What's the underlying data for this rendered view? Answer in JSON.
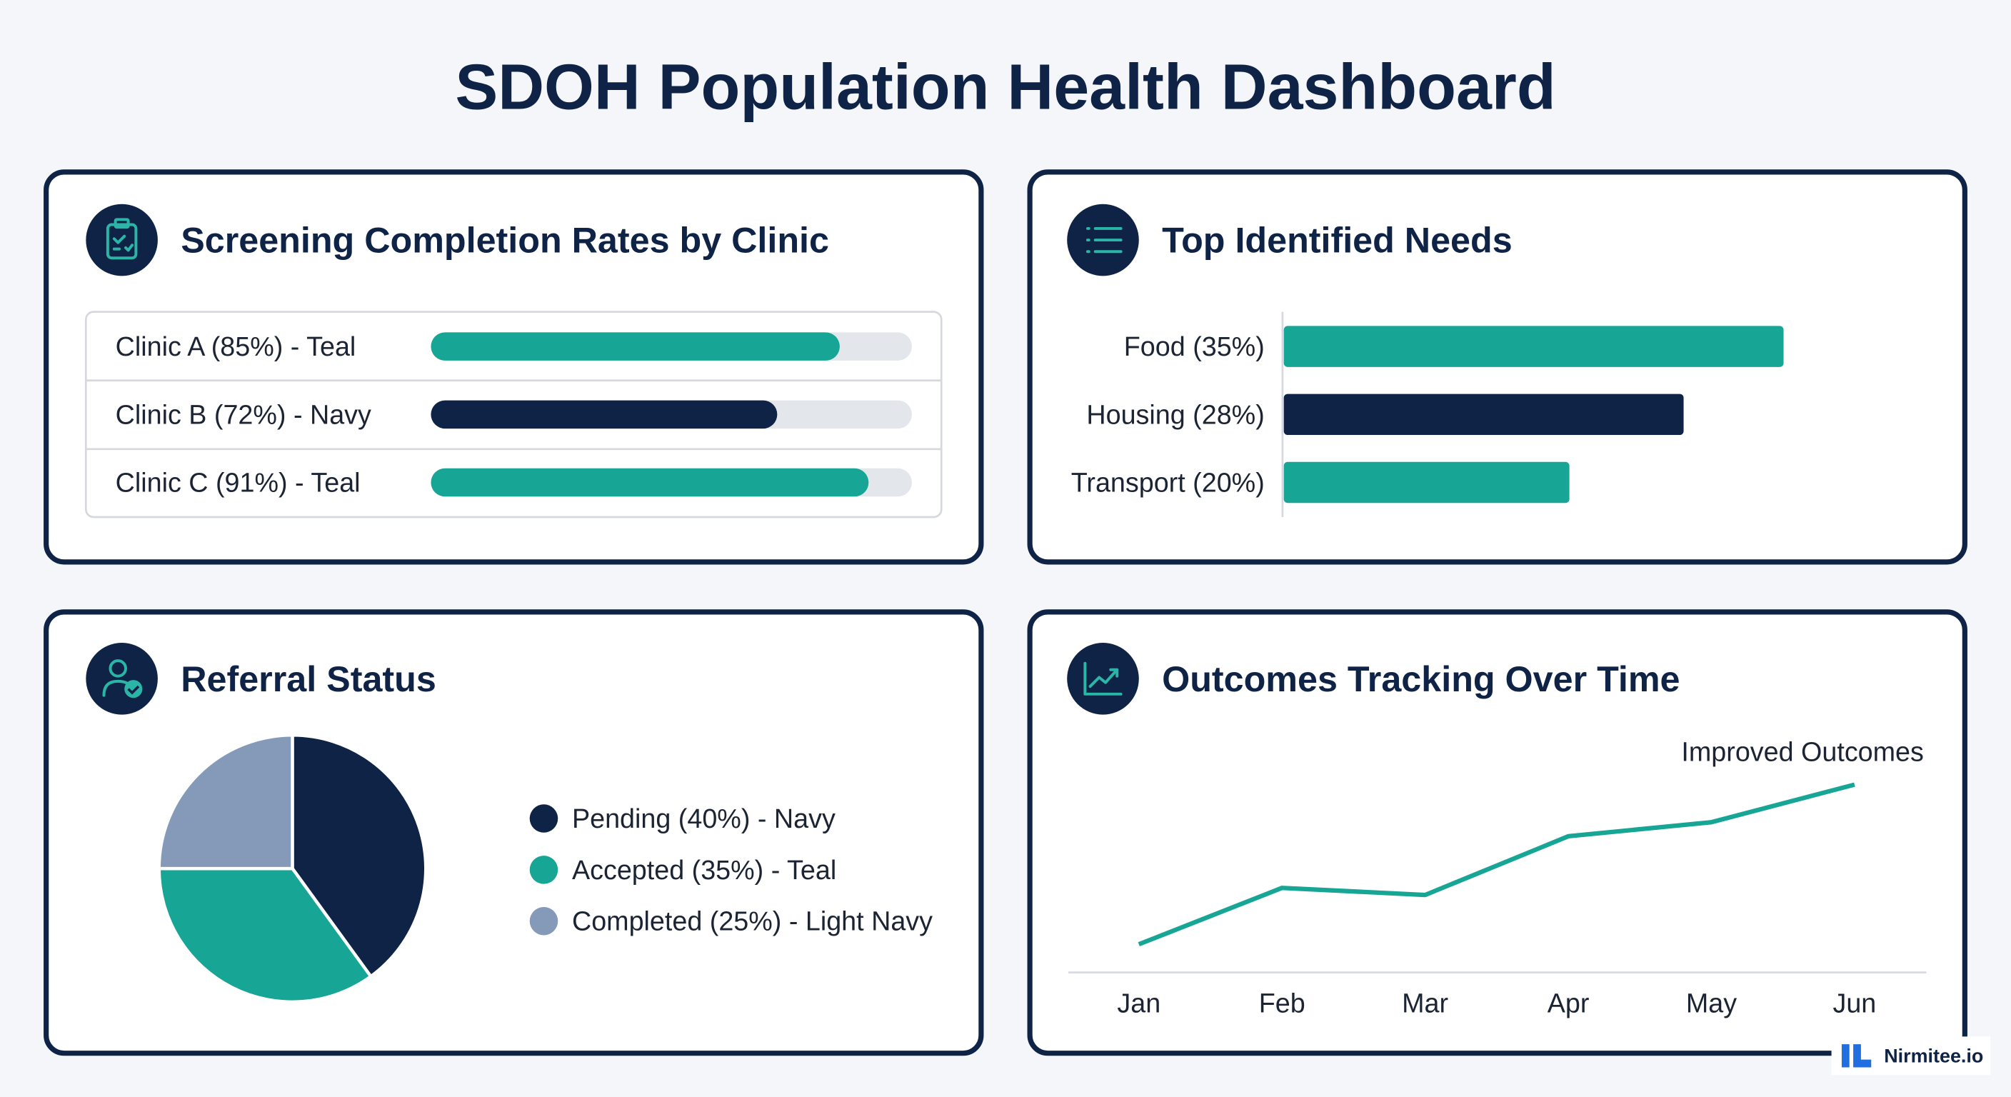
{
  "title": "SDOH Population Health Dashboard",
  "brand": "Nirmitee.io",
  "chart_data": [
    {
      "type": "bar",
      "title": "Screening Completion Rates by Clinic",
      "categories": [
        "Clinic A (85%) - Teal",
        "Clinic B (72%) - Navy",
        "Clinic C (91%) - Teal"
      ],
      "values": [
        85,
        72,
        91
      ],
      "colors": [
        "#17a596",
        "#0f2347",
        "#17a596"
      ],
      "xlim": [
        0,
        100
      ]
    },
    {
      "type": "bar",
      "title": "Top Identified Needs",
      "categories": [
        "Food (35%)",
        "Housing (28%)",
        "Transport (20%)"
      ],
      "values": [
        35,
        28,
        20
      ],
      "colors": [
        "#17a596",
        "#0f2347",
        "#17a596"
      ],
      "xlim": [
        0,
        45
      ]
    },
    {
      "type": "pie",
      "title": "Referral Status",
      "categories": [
        "Pending (40%) - Navy",
        "Accepted (35%) - Teal",
        "Completed (25%) - Light Navy"
      ],
      "values": [
        40,
        35,
        25
      ],
      "colors": [
        "#0f2347",
        "#17a596",
        "#8599b8"
      ]
    },
    {
      "type": "line",
      "title": "Outcomes Tracking Over Time",
      "categories": [
        "Jan",
        "Feb",
        "Mar",
        "Apr",
        "May",
        "Jun"
      ],
      "values": [
        12,
        36,
        33,
        58,
        64,
        80
      ],
      "color": "#17a596",
      "ylim": [
        0,
        100
      ],
      "annotation": "Improved Outcomes"
    }
  ]
}
